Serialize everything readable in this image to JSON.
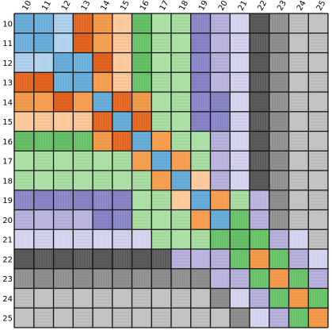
{
  "labels": [
    "10",
    "11",
    "12",
    "13",
    "14",
    "15",
    "16",
    "17",
    "18",
    "19",
    "20",
    "21",
    "22",
    "23",
    "24",
    "25"
  ],
  "palette": {
    "blue": "#6aaedb",
    "blue_light": "#b0d2ee",
    "orange": "#f59b4c",
    "orange_dark": "#e3641f",
    "orange_light": "#fbc999",
    "green": "#66c166",
    "green_light": "#a9dfa2",
    "green_pale": "#cdeec6",
    "purple": "#8885c6",
    "purple_light": "#b7b3de",
    "lavender": "#d3d2ed",
    "gray_dark": "#5a5a5a",
    "gray": "#8f8f8f",
    "gray_light": "#c1c1c1",
    "white": "#f2f2f2"
  },
  "matrix": [
    [
      "blue",
      "blue",
      "blue_light",
      "orange_dark",
      "orange",
      "orange_light",
      "green",
      "green_light",
      "green_light",
      "purple",
      "purple_light",
      "lavender",
      "gray_dark",
      "gray",
      "gray_light",
      "gray_light"
    ],
    [
      "blue",
      "blue",
      "blue_light",
      "orange_dark",
      "orange",
      "orange_light",
      "green",
      "green_light",
      "green_light",
      "purple",
      "purple_light",
      "lavender",
      "gray_dark",
      "gray",
      "gray_light",
      "gray_light"
    ],
    [
      "blue_light",
      "blue_light",
      "blue",
      "blue",
      "orange_dark",
      "orange_light",
      "green",
      "green_light",
      "green_light",
      "purple",
      "purple_light",
      "lavender",
      "gray_dark",
      "gray",
      "gray_light",
      "gray_light"
    ],
    [
      "orange_dark",
      "orange_dark",
      "blue",
      "blue",
      "orange",
      "orange_light",
      "green",
      "green_light",
      "green_light",
      "purple",
      "purple_light",
      "lavender",
      "gray_dark",
      "gray",
      "gray_light",
      "gray_light"
    ],
    [
      "orange",
      "orange",
      "orange_dark",
      "orange",
      "blue",
      "orange_dark",
      "orange",
      "green_light",
      "green_light",
      "purple",
      "purple",
      "lavender",
      "gray_dark",
      "gray",
      "gray_light",
      "gray_light"
    ],
    [
      "orange_light",
      "orange_light",
      "orange_light",
      "orange_light",
      "orange_dark",
      "blue",
      "orange_dark",
      "green_light",
      "green_light",
      "purple",
      "purple",
      "lavender",
      "gray_dark",
      "gray",
      "gray_light",
      "gray_light"
    ],
    [
      "green",
      "green",
      "green",
      "green",
      "orange",
      "orange_dark",
      "blue",
      "orange",
      "green_light",
      "green_light",
      "purple_light",
      "lavender",
      "gray_dark",
      "gray",
      "gray_light",
      "gray_light"
    ],
    [
      "green_light",
      "green_light",
      "green_light",
      "green_light",
      "green_light",
      "green_light",
      "orange",
      "blue",
      "orange",
      "green_light",
      "purple_light",
      "lavender",
      "gray_dark",
      "gray",
      "gray_light",
      "gray_light"
    ],
    [
      "green_light",
      "green_light",
      "green_light",
      "green_light",
      "green_light",
      "green_light",
      "green_light",
      "orange",
      "blue",
      "orange_light",
      "purple_light",
      "lavender",
      "gray_dark",
      "gray",
      "gray_light",
      "gray_light"
    ],
    [
      "purple",
      "purple",
      "purple",
      "purple",
      "purple",
      "purple",
      "green_light",
      "green_light",
      "orange_light",
      "blue",
      "orange",
      "green_light",
      "purple_light",
      "gray",
      "gray_light",
      "gray_light"
    ],
    [
      "purple_light",
      "purple_light",
      "purple_light",
      "purple_light",
      "purple",
      "purple",
      "green_light",
      "green_light",
      "green_light",
      "orange",
      "blue",
      "green",
      "purple_light",
      "gray",
      "gray_light",
      "gray_light"
    ],
    [
      "lavender",
      "lavender",
      "lavender",
      "lavender",
      "lavender",
      "lavender",
      "lavender",
      "green_light",
      "green_light",
      "green_light",
      "green",
      "green",
      "green",
      "purple_light",
      "lavender",
      "gray_light"
    ],
    [
      "gray_dark",
      "gray_dark",
      "gray_dark",
      "gray_dark",
      "gray_dark",
      "gray_dark",
      "gray_dark",
      "gray_dark",
      "purple_light",
      "purple_light",
      "purple_light",
      "green",
      "orange",
      "green",
      "purple_light",
      "lavender"
    ],
    [
      "gray",
      "gray",
      "gray",
      "gray",
      "gray",
      "gray",
      "gray",
      "gray",
      "gray",
      "gray",
      "purple_light",
      "purple_light",
      "green",
      "orange",
      "green",
      "purple_light"
    ],
    [
      "gray_light",
      "gray_light",
      "gray_light",
      "gray_light",
      "gray_light",
      "gray_light",
      "gray_light",
      "gray_light",
      "gray_light",
      "gray_light",
      "gray",
      "lavender",
      "purple_light",
      "green",
      "orange",
      "green"
    ],
    [
      "gray_light",
      "gray_light",
      "gray_light",
      "gray_light",
      "gray_light",
      "gray_light",
      "gray_light",
      "gray_light",
      "gray_light",
      "gray_light",
      "gray_light",
      "gray",
      "lavender",
      "purple_light",
      "green",
      "orange"
    ]
  ]
}
